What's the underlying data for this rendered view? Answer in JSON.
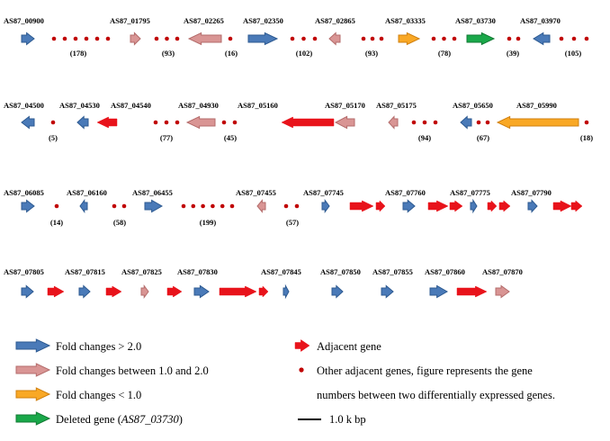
{
  "colors": {
    "fold_gt2": "#4a7ab8",
    "fold_gt2_stroke": "#2d5a91",
    "fold_1_2": "#d99594",
    "fold_1_2_stroke": "#b46c6b",
    "fold_lt1": "#f9a825",
    "fold_lt1_stroke": "#d08010",
    "deleted": "#1aa84a",
    "deleted_stroke": "#127a34",
    "adjacent": "#e8131b",
    "dot": "#c00000"
  },
  "gene_labels": [
    "AS87_00900",
    "AS87_01795",
    "AS87_02265",
    "AS87_02350",
    "AS87_02865",
    "AS87_03335",
    "AS87_03730",
    "AS87_03970",
    "AS87_04500",
    "AS87_04530",
    "AS87_04540",
    "AS87_04930",
    "AS87_05160",
    "AS87_05170",
    "AS87_05175",
    "AS87_05650",
    "AS87_05990",
    "AS87_06085",
    "AS87_06160",
    "AS87_06455",
    "AS87_07455",
    "AS87_07745",
    "AS87_07760",
    "AS87_07775",
    "AS87_07790",
    "AS87_07805",
    "AS87_07815",
    "AS87_07825",
    "AS87_07830",
    "AS87_07845",
    "AS87_07850",
    "AS87_07855",
    "AS87_07860",
    "AS87_07870"
  ],
  "between_counts": [
    "(178)",
    "(93)",
    "(16)",
    "(102)",
    "(93)",
    "(78)",
    "(39)",
    "(105)",
    "(5)",
    "(77)",
    "(45)",
    "(94)",
    "(67)",
    "(18)",
    "(14)",
    "(58)",
    "(199)",
    "(57)"
  ],
  "legend": {
    "fold_gt2": "Fold changes > 2.0",
    "fold_1_2": "Fold changes  between 1.0 and 2.0",
    "fold_lt1": "Fold changes  < 1.0",
    "deleted_prefix": "Deleted gene (",
    "deleted_gene": "AS87_03730",
    "deleted_suffix": ")",
    "adjacent": "Adjacent gene",
    "other_line1": "Other adjacent genes,  figure represents the gene",
    "other_line2": "numbers between two differentially expressed genes.",
    "scale": "1.0 k bp"
  }
}
